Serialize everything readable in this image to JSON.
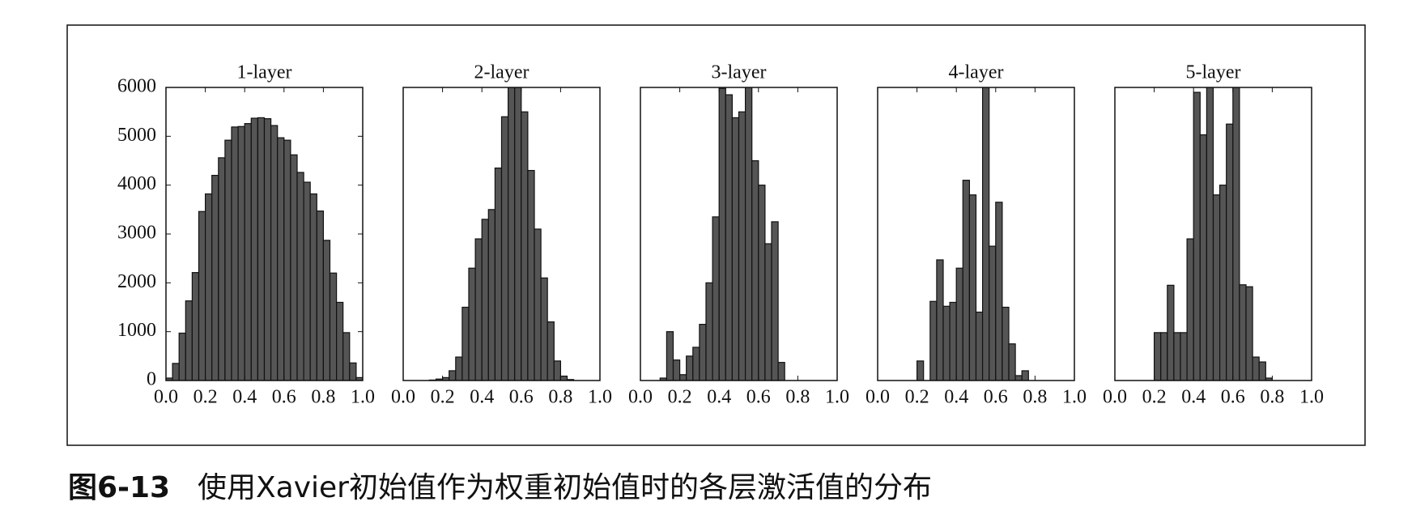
{
  "chart_data": [
    {
      "type": "histogram",
      "title": "1-layer",
      "bins": [
        0,
        0.0333,
        0.0667,
        0.1,
        0.1333,
        0.1667,
        0.2,
        0.2333,
        0.2667,
        0.3,
        0.3333,
        0.3667,
        0.4,
        0.4333,
        0.4667,
        0.5,
        0.5333,
        0.5667,
        0.6,
        0.6333,
        0.6667,
        0.7,
        0.7333,
        0.7667,
        0.8,
        0.8333,
        0.8667,
        0.9,
        0.9333,
        0.9667,
        1
      ],
      "values": [
        50,
        350,
        970,
        1630,
        2210,
        3460,
        3820,
        4200,
        4560,
        4920,
        5190,
        5200,
        5260,
        5370,
        5380,
        5360,
        5220,
        4970,
        4920,
        4620,
        4260,
        4060,
        3820,
        3470,
        2870,
        2200,
        1600,
        980,
        360,
        60
      ],
      "color": "#555555",
      "xlim": [
        0,
        1
      ],
      "ylim": [
        0,
        6000
      ],
      "xticks": [
        {
          "value": 0,
          "label": "0.0"
        },
        {
          "value": 0.2,
          "label": "0.2"
        },
        {
          "value": 0.4,
          "label": "0.4"
        },
        {
          "value": 0.6,
          "label": "0.6"
        },
        {
          "value": 0.8,
          "label": "0.8"
        },
        {
          "value": 1,
          "label": "1.0"
        }
      ],
      "yticks": [
        0,
        1000,
        2000,
        3000,
        4000,
        5000,
        6000
      ]
    },
    {
      "type": "histogram",
      "title": "2-layer",
      "bins": [
        0,
        0.0333,
        0.0667,
        0.1,
        0.1333,
        0.1667,
        0.2,
        0.2333,
        0.2667,
        0.3,
        0.3333,
        0.3667,
        0.4,
        0.4333,
        0.4667,
        0.5,
        0.5333,
        0.5667,
        0.6,
        0.6333,
        0.6667,
        0.7,
        0.7333,
        0.7667,
        0.8,
        0.8333,
        0.8667,
        0.9,
        0.9333,
        0.9667,
        1
      ],
      "values": [
        0,
        0,
        0,
        0,
        10,
        30,
        60,
        200,
        480,
        1500,
        2300,
        2900,
        3300,
        3500,
        4350,
        5400,
        6200,
        6300,
        5500,
        4300,
        3100,
        2100,
        1200,
        400,
        90,
        20,
        0,
        0,
        0,
        0
      ],
      "color": "#555555",
      "xlim": [
        0,
        1
      ],
      "ylim": [
        0,
        6000
      ],
      "xticks": [
        {
          "value": 0,
          "label": "0.0"
        },
        {
          "value": 0.2,
          "label": "0.2"
        },
        {
          "value": 0.4,
          "label": "0.4"
        },
        {
          "value": 0.6,
          "label": "0.6"
        },
        {
          "value": 0.8,
          "label": "0.8"
        },
        {
          "value": 1,
          "label": "1.0"
        }
      ]
    },
    {
      "type": "histogram",
      "title": "3-layer",
      "bins": [
        0,
        0.0333,
        0.0667,
        0.1,
        0.1333,
        0.1667,
        0.2,
        0.2333,
        0.2667,
        0.3,
        0.3333,
        0.3667,
        0.4,
        0.4333,
        0.4667,
        0.5,
        0.5333,
        0.5667,
        0.6,
        0.6333,
        0.6667,
        0.7,
        0.7333,
        0.7667,
        0.8,
        0.8333,
        0.8667,
        0.9,
        0.9333,
        0.9667,
        1
      ],
      "values": [
        0,
        0,
        0,
        50,
        1000,
        420,
        120,
        500,
        680,
        1150,
        2000,
        3350,
        5980,
        5850,
        5380,
        5500,
        6300,
        4500,
        4000,
        2800,
        3250,
        370,
        0,
        0,
        0,
        0,
        0,
        0,
        0,
        0
      ],
      "color": "#555555",
      "xlim": [
        0,
        1
      ],
      "ylim": [
        0,
        6000
      ],
      "xticks": [
        {
          "value": 0,
          "label": "0.0"
        },
        {
          "value": 0.2,
          "label": "0.2"
        },
        {
          "value": 0.4,
          "label": "0.4"
        },
        {
          "value": 0.6,
          "label": "0.6"
        },
        {
          "value": 0.8,
          "label": "0.8"
        },
        {
          "value": 1,
          "label": "1.0"
        }
      ]
    },
    {
      "type": "histogram",
      "title": "4-layer",
      "bins": [
        0,
        0.0333,
        0.0667,
        0.1,
        0.1333,
        0.1667,
        0.2,
        0.2333,
        0.2667,
        0.3,
        0.3333,
        0.3667,
        0.4,
        0.4333,
        0.4667,
        0.5,
        0.5333,
        0.5667,
        0.6,
        0.6333,
        0.6667,
        0.7,
        0.7333,
        0.7667,
        0.8,
        0.8333,
        0.8667,
        0.9,
        0.9333,
        0.9667,
        1
      ],
      "values": [
        0,
        0,
        0,
        0,
        0,
        0,
        400,
        0,
        1620,
        2470,
        1520,
        1600,
        2300,
        4100,
        3800,
        1400,
        6300,
        2750,
        3650,
        1500,
        750,
        100,
        200,
        0,
        0,
        0,
        0,
        0,
        0,
        0
      ],
      "color": "#555555",
      "xlim": [
        0,
        1
      ],
      "ylim": [
        0,
        6000
      ],
      "xticks": [
        {
          "value": 0,
          "label": "0.0"
        },
        {
          "value": 0.2,
          "label": "0.2"
        },
        {
          "value": 0.4,
          "label": "0.4"
        },
        {
          "value": 0.6,
          "label": "0.6"
        },
        {
          "value": 0.8,
          "label": "0.8"
        },
        {
          "value": 1,
          "label": "1.0"
        }
      ]
    },
    {
      "type": "histogram",
      "title": "5-layer",
      "bins": [
        0,
        0.0333,
        0.0667,
        0.1,
        0.1333,
        0.1667,
        0.2,
        0.2333,
        0.2667,
        0.3,
        0.3333,
        0.3667,
        0.4,
        0.4333,
        0.4667,
        0.5,
        0.5333,
        0.5667,
        0.6,
        0.6333,
        0.6667,
        0.7,
        0.7333,
        0.7667,
        0.8,
        0.8333,
        0.8667,
        0.9,
        0.9333,
        0.9667,
        1
      ],
      "values": [
        0,
        0,
        0,
        0,
        0,
        0,
        980,
        980,
        1950,
        980,
        980,
        2900,
        5900,
        5030,
        6300,
        3800,
        4000,
        5250,
        6300,
        1960,
        1920,
        480,
        380,
        50,
        0,
        0,
        0,
        0,
        0,
        0
      ],
      "color": "#555555",
      "xlim": [
        0,
        1
      ],
      "ylim": [
        0,
        6000
      ],
      "xticks": [
        {
          "value": 0,
          "label": "0.0"
        },
        {
          "value": 0.2,
          "label": "0.2"
        },
        {
          "value": 0.4,
          "label": "0.4"
        },
        {
          "value": 0.6,
          "label": "0.6"
        },
        {
          "value": 0.8,
          "label": "0.8"
        },
        {
          "value": 1,
          "label": "1.0"
        }
      ]
    }
  ],
  "figure_caption": {
    "number": "图6-13",
    "text": "使用Xavier初始值作为权重初始值时的各层激活值的分布"
  }
}
